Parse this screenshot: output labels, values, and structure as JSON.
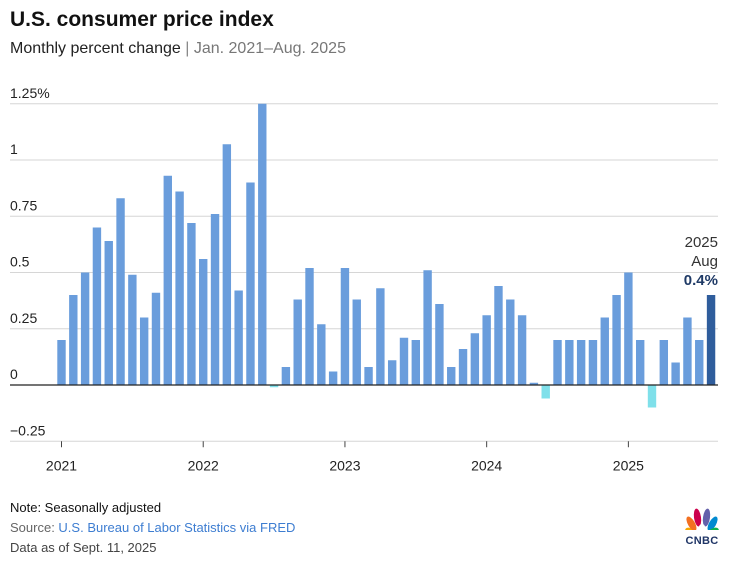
{
  "chart_data": {
    "type": "bar",
    "title": "U.S. consumer price index",
    "subtitle": "Monthly percent change",
    "subtitle_range": "Jan. 2021–Aug. 2025",
    "xlabel": "",
    "ylabel": "",
    "ylim": [
      -0.25,
      1.25
    ],
    "grid": true,
    "y_ticks": [
      {
        "value": 1.25,
        "label": "1.25%"
      },
      {
        "value": 1,
        "label": "1"
      },
      {
        "value": 0.75,
        "label": "0.75"
      },
      {
        "value": 0.5,
        "label": "0.5"
      },
      {
        "value": 0.25,
        "label": "0.25"
      },
      {
        "value": 0,
        "label": "0"
      },
      {
        "value": -0.25,
        "label": "−0.25"
      }
    ],
    "x_ticks": [
      {
        "index": 0,
        "label": "2021"
      },
      {
        "index": 12,
        "label": "2022"
      },
      {
        "index": 24,
        "label": "2023"
      },
      {
        "index": 36,
        "label": "2024"
      },
      {
        "index": 48,
        "label": "2025"
      }
    ],
    "start": "2021-01",
    "values": [
      0.2,
      0.4,
      0.5,
      0.7,
      0.64,
      0.83,
      0.49,
      0.3,
      0.41,
      0.93,
      0.86,
      0.72,
      0.56,
      0.76,
      1.07,
      0.42,
      0.9,
      1.25,
      -0.01,
      0.08,
      0.38,
      0.52,
      0.27,
      0.06,
      0.52,
      0.38,
      0.08,
      0.43,
      0.11,
      0.21,
      0.2,
      0.51,
      0.36,
      0.08,
      0.16,
      0.23,
      0.31,
      0.44,
      0.38,
      0.31,
      0.01,
      -0.06,
      0.2,
      0.2,
      0.2,
      0.2,
      0.3,
      0.4,
      0.5,
      0.2,
      -0.1,
      0.2,
      0.1,
      0.3,
      0.2,
      0.4
    ],
    "annotation": {
      "year": "2025",
      "month": "Aug",
      "value_label": "0.4%"
    }
  },
  "colors": {
    "positive": "#6a9ddc",
    "negative": "#7fe0ea",
    "highlight": "#2f5d9c",
    "grid": "#d6d6d6",
    "zero": "#222222"
  },
  "footer": {
    "note": "Note: Seasonally adjusted",
    "source_label": "Source: ",
    "source_text": "U.S. Bureau of Labor Statistics via FRED",
    "as_of": "Data as of Sept. 11, 2025"
  },
  "logo": {
    "text": "CNBC"
  }
}
